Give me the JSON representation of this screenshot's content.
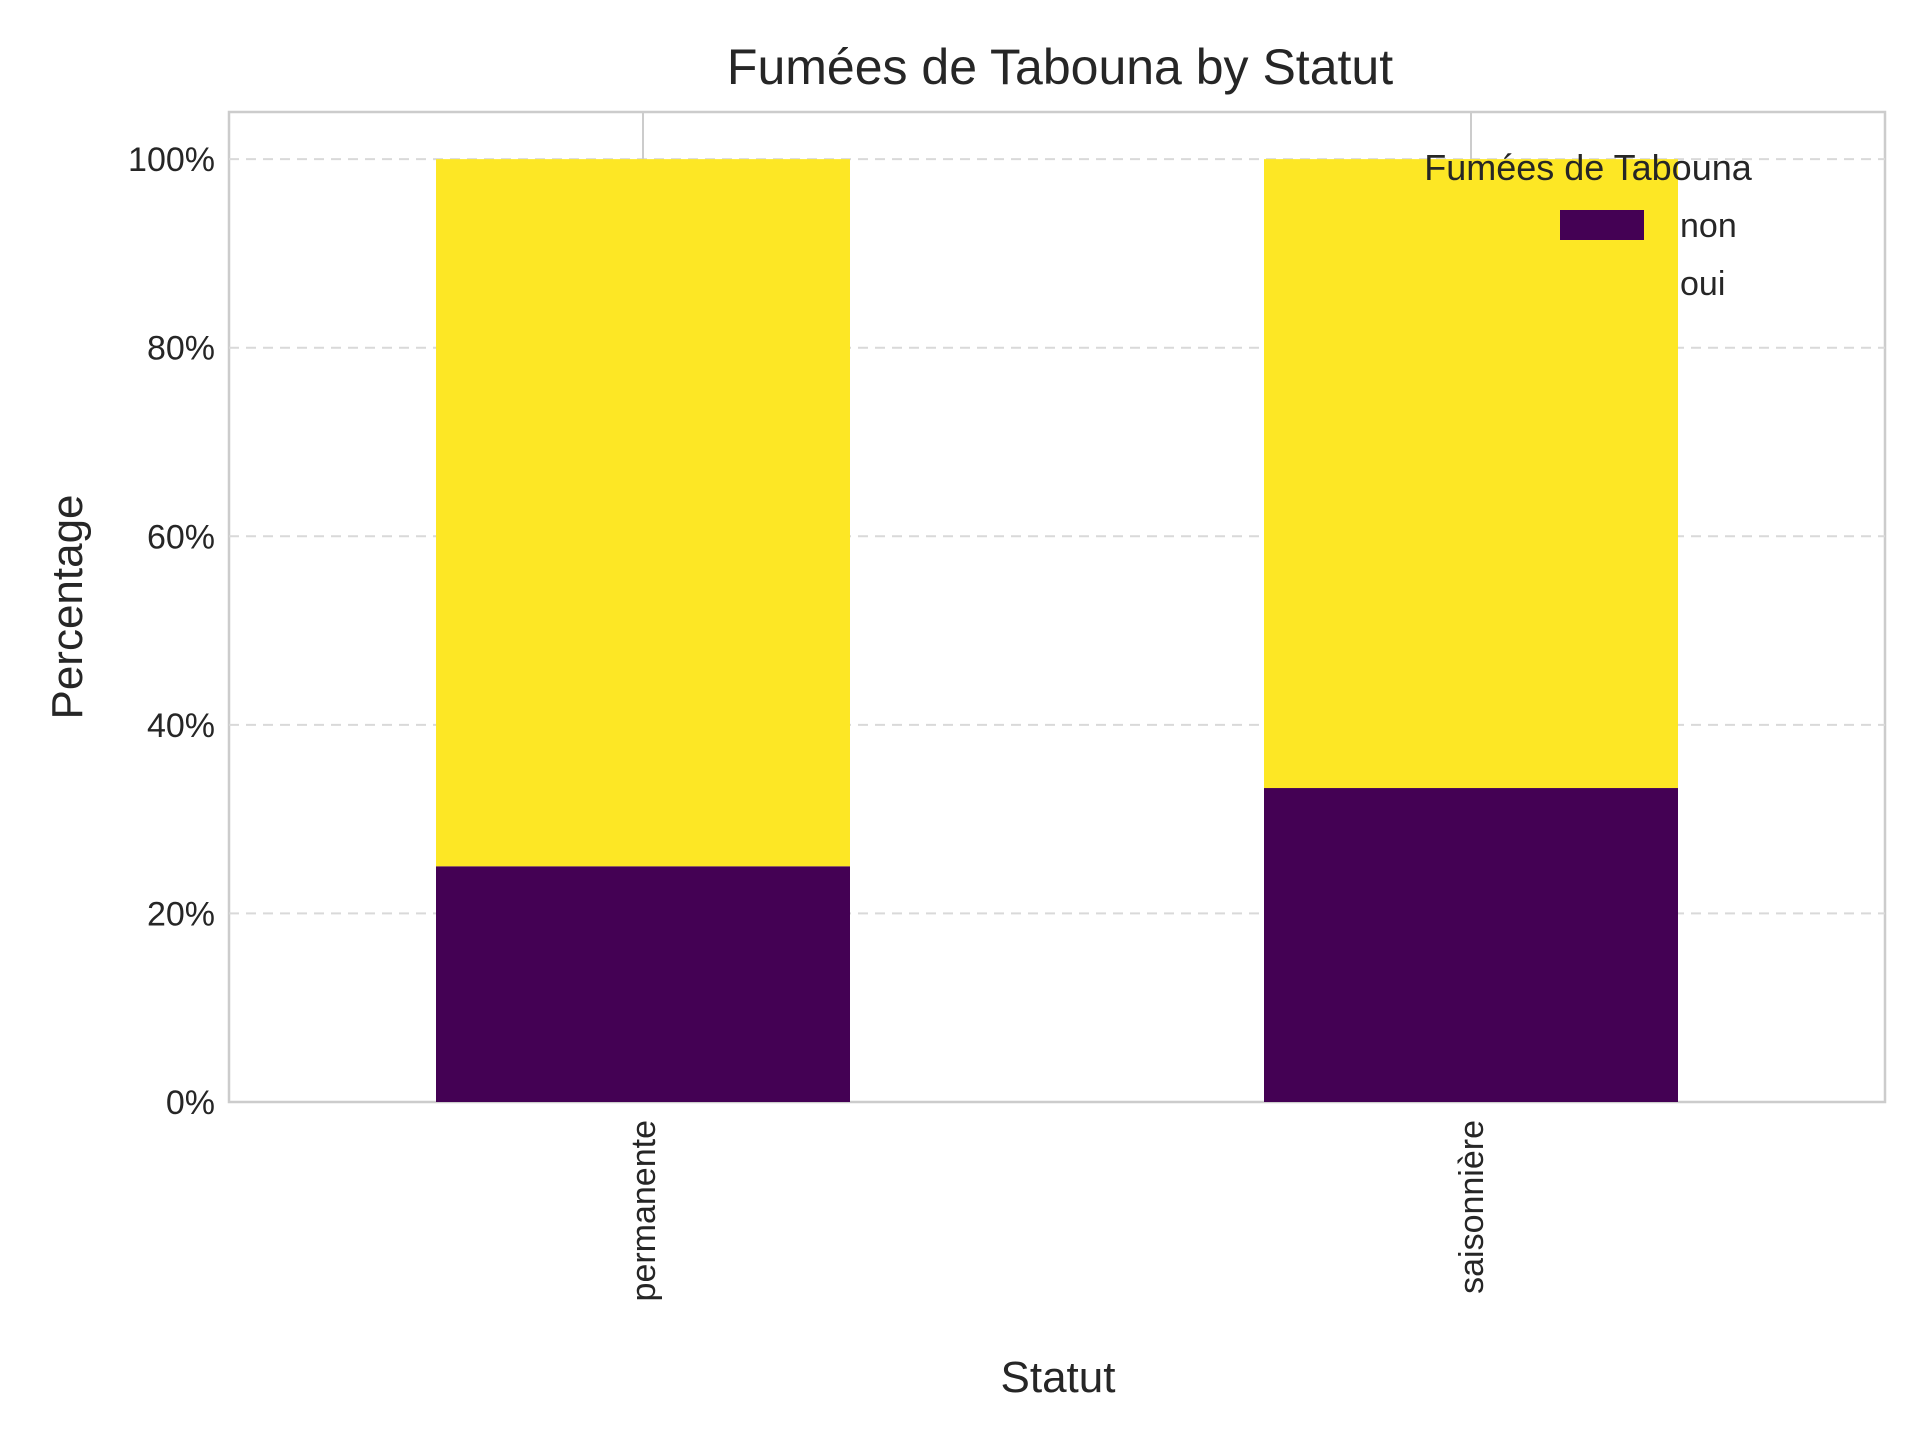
{
  "chart_data": {
    "type": "bar",
    "stacked": true,
    "title": "Fumées de Tabouna by Statut",
    "xlabel": "Statut",
    "ylabel": "Percentage",
    "categories": [
      "permanente",
      "saisonnière"
    ],
    "series": [
      {
        "name": "non",
        "values": [
          25.0,
          33.3
        ],
        "color": "#440154"
      },
      {
        "name": "oui",
        "values": [
          75.0,
          66.7
        ],
        "color": "#fde725"
      }
    ],
    "ylim": [
      0,
      105
    ],
    "yticks": [
      {
        "value": 0,
        "label": "0%"
      },
      {
        "value": 20,
        "label": "20%"
      },
      {
        "value": 40,
        "label": "40%"
      },
      {
        "value": 60,
        "label": "60%"
      },
      {
        "value": 80,
        "label": "80%"
      },
      {
        "value": 100,
        "label": "100%"
      }
    ],
    "grid": true,
    "legend": {
      "title": "Fumées de Tabouna",
      "placement": "top-right"
    }
  }
}
